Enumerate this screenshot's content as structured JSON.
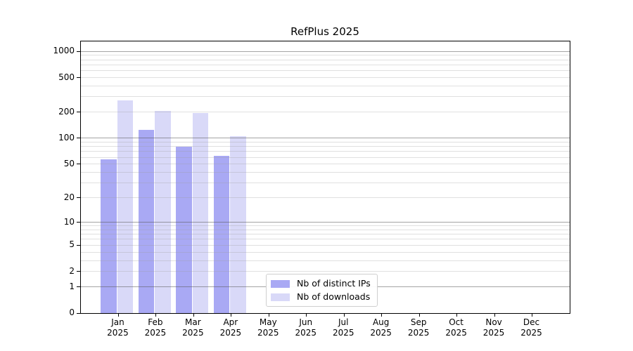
{
  "chart_data": {
    "type": "bar",
    "title": "RefPlus 2025",
    "categories": [
      "Jan",
      "Feb",
      "Mar",
      "Apr",
      "May",
      "Jun",
      "Jul",
      "Aug",
      "Sep",
      "Oct",
      "Nov",
      "Dec"
    ],
    "year_label": "2025",
    "series": [
      {
        "name": "Nb of distinct IPs",
        "color": "#a9a9f4",
        "values": [
          57,
          124,
          80,
          63,
          null,
          null,
          null,
          null,
          null,
          null,
          null,
          null
        ]
      },
      {
        "name": "Nb of downloads",
        "color": "#d9d9f8",
        "values": [
          274,
          207,
          196,
          105,
          null,
          null,
          null,
          null,
          null,
          null,
          null,
          null
        ]
      }
    ],
    "y_scale": "log10(1+v)",
    "y_ticks": [
      0,
      1,
      2,
      5,
      10,
      20,
      50,
      100,
      200,
      500,
      1000
    ],
    "ylim": [
      0,
      1300
    ],
    "xlabel": "",
    "ylabel": "",
    "grid": "horizontal, minor light / powers-of-10 dark, drawn over bars",
    "legend_position": "lower center"
  },
  "colors": {
    "axis": "#000000",
    "background": "#ffffff",
    "legend_border": "#cfcfcf"
  }
}
